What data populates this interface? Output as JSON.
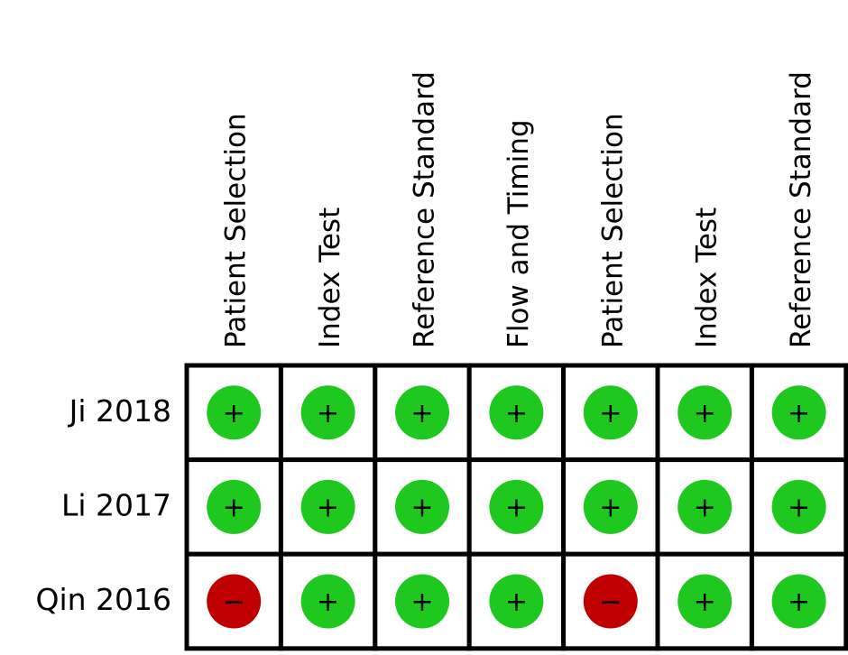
{
  "columns": [
    "Patient Selection",
    "Index Test",
    "Reference Standard",
    "Flow and Timing",
    "Patient Selection",
    "Index Test",
    "Reference Standard"
  ],
  "rows": [
    {
      "label": "Ji 2018",
      "cells": [
        {
          "symbol": "+",
          "color": "#1ec81e"
        },
        {
          "symbol": "+",
          "color": "#1ec81e"
        },
        {
          "symbol": "+",
          "color": "#1ec81e"
        },
        {
          "symbol": "+",
          "color": "#1ec81e"
        },
        {
          "symbol": "+",
          "color": "#1ec81e"
        },
        {
          "symbol": "+",
          "color": "#1ec81e"
        },
        {
          "symbol": "+",
          "color": "#1ec81e"
        }
      ]
    },
    {
      "label": "Li 2017",
      "cells": [
        {
          "symbol": "+",
          "color": "#1ec81e"
        },
        {
          "symbol": "+",
          "color": "#1ec81e"
        },
        {
          "symbol": "+",
          "color": "#1ec81e"
        },
        {
          "symbol": "+",
          "color": "#1ec81e"
        },
        {
          "symbol": "+",
          "color": "#1ec81e"
        },
        {
          "symbol": "+",
          "color": "#1ec81e"
        },
        {
          "symbol": "+",
          "color": "#1ec81e"
        }
      ]
    },
    {
      "label": "Qin 2016",
      "cells": [
        {
          "symbol": "−",
          "color": "#c00000"
        },
        {
          "symbol": "+",
          "color": "#1ec81e"
        },
        {
          "symbol": "+",
          "color": "#1ec81e"
        },
        {
          "symbol": "+",
          "color": "#1ec81e"
        },
        {
          "symbol": "−",
          "color": "#c00000"
        },
        {
          "symbol": "+",
          "color": "#1ec81e"
        },
        {
          "symbol": "+",
          "color": "#1ec81e"
        }
      ]
    }
  ]
}
